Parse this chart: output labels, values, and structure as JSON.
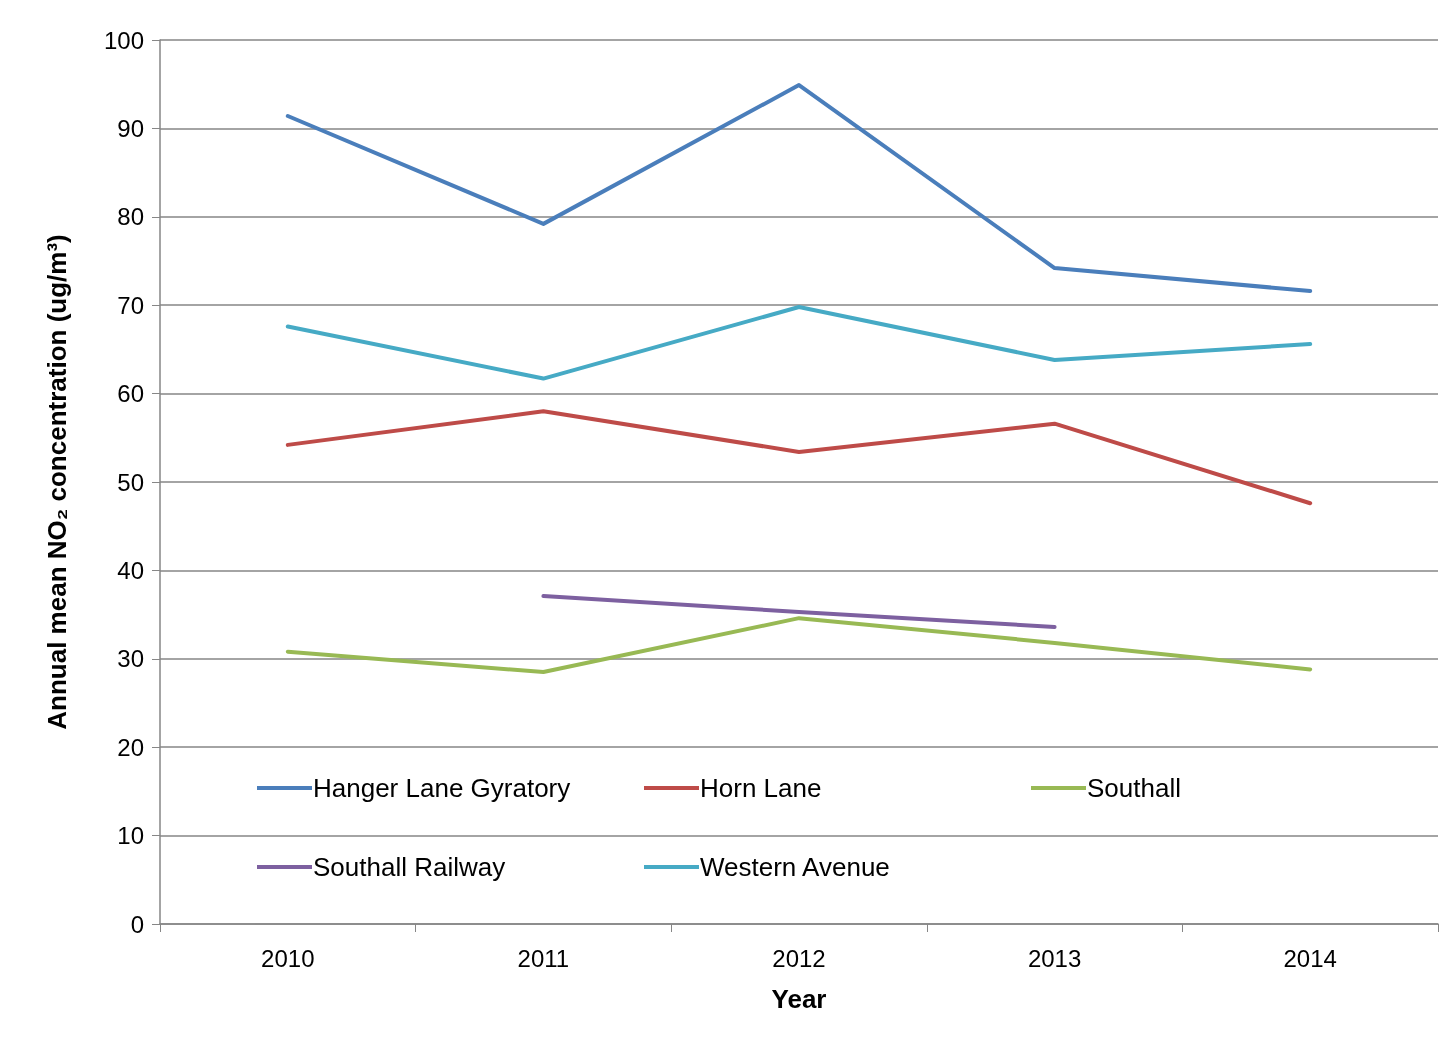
{
  "chart_data": {
    "type": "line",
    "xlabel": "Year",
    "ylabel": "Annual mean NO₂ concentration (ug/m³)",
    "categories": [
      "2010",
      "2011",
      "2012",
      "2013",
      "2014"
    ],
    "series": [
      {
        "name": "Hanger Lane Gyratory",
        "color": "#4a7ebb",
        "values": [
          91.4,
          79.2,
          94.9,
          74.2,
          71.6
        ]
      },
      {
        "name": "Horn Lane",
        "color": "#be4b48",
        "values": [
          54.2,
          58.0,
          53.4,
          56.6,
          47.6
        ]
      },
      {
        "name": "Southall",
        "color": "#98b954",
        "values": [
          30.8,
          28.5,
          34.6,
          31.8,
          28.8
        ]
      },
      {
        "name": "Southall Railway",
        "color": "#7d60a0",
        "values": [
          null,
          37.1,
          35.3,
          33.6,
          null
        ]
      },
      {
        "name": "Western Avenue",
        "color": "#46aac5",
        "values": [
          67.6,
          61.7,
          69.8,
          63.8,
          65.6
        ]
      }
    ],
    "ylim": [
      0,
      100
    ],
    "yticks": [
      0,
      10,
      20,
      30,
      40,
      50,
      60,
      70,
      80,
      90,
      100
    ],
    "grid": "y",
    "legend": "bottom left",
    "marker": "none",
    "line_style": "solid"
  }
}
